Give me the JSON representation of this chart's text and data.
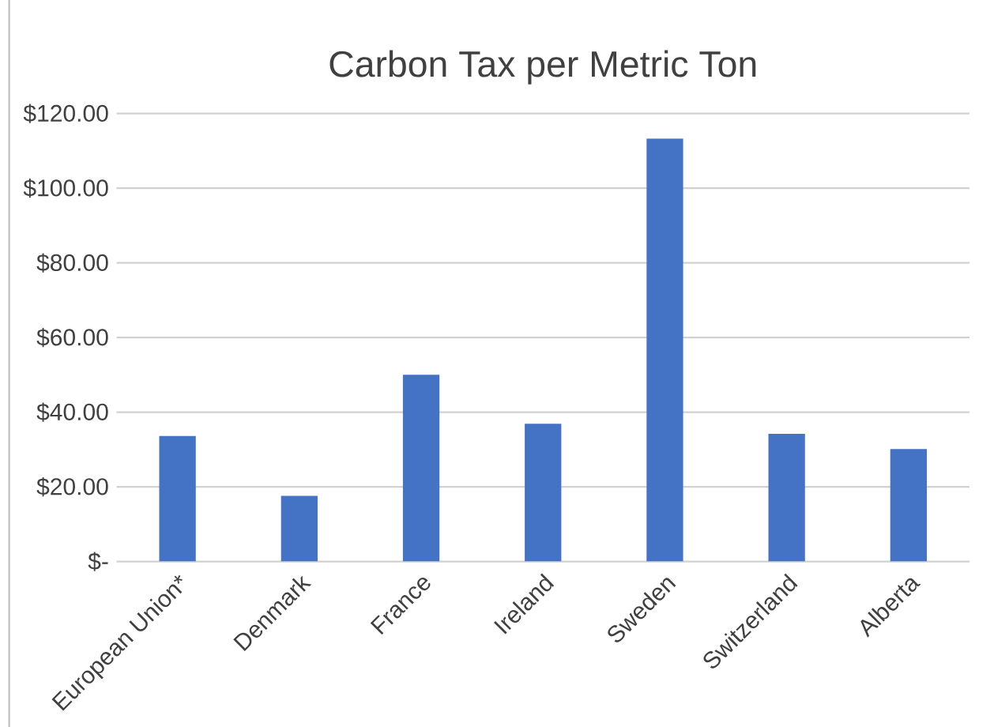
{
  "chart_data": {
    "type": "bar",
    "title": "Carbon Tax per Metric Ton",
    "categories": [
      "European Union*",
      "Denmark",
      "France",
      "Ireland",
      "Sweden",
      "Switzerland",
      "Alberta"
    ],
    "values": [
      33.6,
      17.6,
      50.0,
      36.9,
      113.3,
      34.2,
      30.1
    ],
    "color": "#4472c4",
    "ylim": [
      0,
      120
    ],
    "yticks": [
      {
        "value": 0,
        "label": "$-"
      },
      {
        "value": 20,
        "label": "$20.00"
      },
      {
        "value": 40,
        "label": "$40.00"
      },
      {
        "value": 60,
        "label": "$60.00"
      },
      {
        "value": 80,
        "label": "$80.00"
      },
      {
        "value": 100,
        "label": "$100.00"
      },
      {
        "value": 120,
        "label": "$120.00"
      }
    ],
    "grid": "y"
  }
}
